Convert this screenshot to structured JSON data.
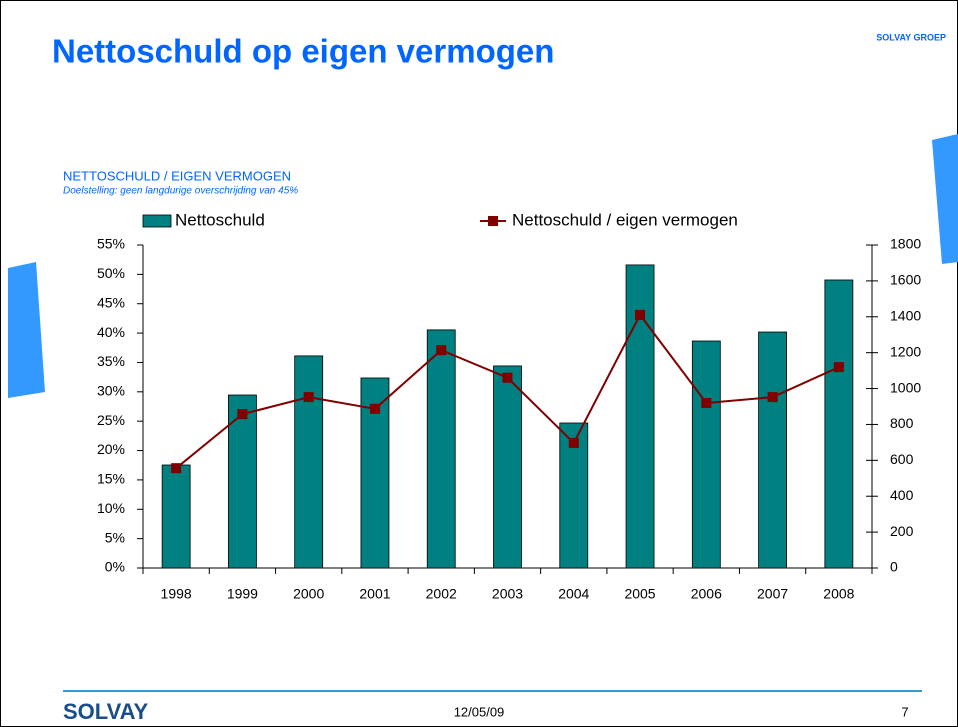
{
  "header": {
    "title": "Nettoschuld op eigen vermogen",
    "brand": "SOLVAY GROEP"
  },
  "chart_data": {
    "type": "bar_line",
    "title": "NETTOSCHULD / EIGEN VERMOGEN",
    "subtitle": "Doelstelling: geen langdurige overschrijding van 45%",
    "categories": [
      "1998",
      "1999",
      "2000",
      "2001",
      "2002",
      "2003",
      "2004",
      "2005",
      "2006",
      "2007",
      "2008"
    ],
    "series": [
      {
        "name": "Nettoschuld",
        "type": "bar",
        "axis": "y2",
        "color": "#008080",
        "values": [
          574,
          964,
          1182,
          1059,
          1327,
          1126,
          808,
          1689,
          1265,
          1315,
          1605
        ]
      },
      {
        "name": "Nettoschuld / eigen vermogen",
        "type": "line",
        "axis": "y",
        "color": "#800000",
        "values": [
          17.0,
          26.2,
          29.1,
          27.1,
          37.1,
          32.4,
          21.3,
          43.1,
          28.1,
          29.1,
          34.2
        ]
      }
    ],
    "ylim": [
      0,
      55
    ],
    "yticks": [
      {
        "value": 0,
        "label": "0%"
      },
      {
        "value": 5,
        "label": "5%"
      },
      {
        "value": 10,
        "label": "10%"
      },
      {
        "value": 15,
        "label": "15%"
      },
      {
        "value": 20,
        "label": "20%"
      },
      {
        "value": 25,
        "label": "25%"
      },
      {
        "value": 30,
        "label": "30%"
      },
      {
        "value": 35,
        "label": "35%"
      },
      {
        "value": 40,
        "label": "40%"
      },
      {
        "value": 45,
        "label": "45%"
      },
      {
        "value": 50,
        "label": "50%"
      },
      {
        "value": 55,
        "label": "55%"
      }
    ],
    "y2lim": [
      0,
      1800
    ],
    "y2ticks": [
      0,
      200,
      400,
      600,
      800,
      1000,
      1200,
      1400,
      1600,
      1800
    ]
  },
  "footer": {
    "logo": "SOLVAY",
    "date": "12/05/09",
    "page": "7"
  }
}
